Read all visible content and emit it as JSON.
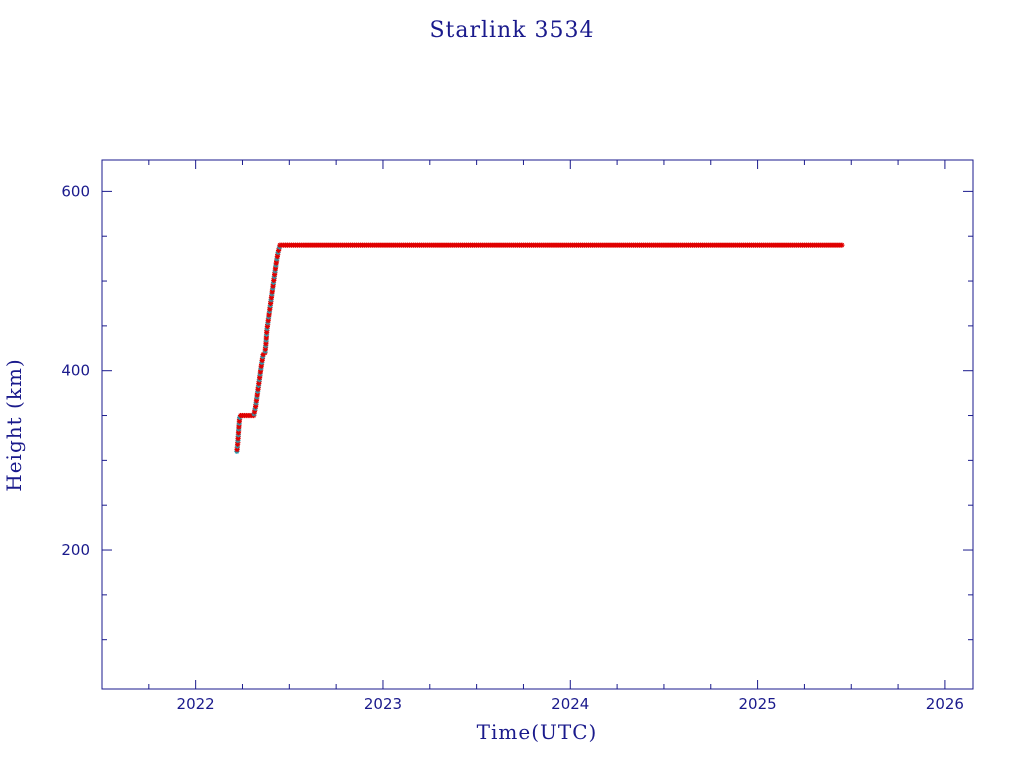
{
  "chart_data": {
    "type": "scatter",
    "title": "Starlink 3534",
    "xlabel": "Time(UTC)",
    "ylabel": "Height (km)",
    "xlim": [
      2021.5,
      2026.15
    ],
    "ylim": [
      45,
      635
    ],
    "x_ticks": [
      2022,
      2023,
      2024,
      2025,
      2026
    ],
    "x_minor_ticks": [
      2021.75,
      2022.25,
      2022.5,
      2022.75,
      2023.25,
      2023.5,
      2023.75,
      2024.25,
      2024.5,
      2024.75,
      2025.25,
      2025.5,
      2025.75
    ],
    "y_ticks": [
      200,
      400,
      600
    ],
    "y_minor_ticks": [
      100,
      150,
      250,
      300,
      350,
      450,
      500,
      550
    ],
    "grid": false,
    "colors": {
      "axis": "#1a1a8c",
      "series": "#e00000",
      "secondary_marker": "#2a9db0"
    },
    "series": [
      {
        "marker": "asterisk",
        "points": [
          [
            2022.22,
            310
          ],
          [
            2022.225,
            320
          ],
          [
            2022.23,
            335
          ],
          [
            2022.235,
            348
          ],
          [
            2022.24,
            350
          ],
          [
            2022.26,
            350
          ],
          [
            2022.28,
            350
          ],
          [
            2022.3,
            350
          ],
          [
            2022.31,
            350
          ],
          [
            2022.32,
            360
          ],
          [
            2022.33,
            375
          ],
          [
            2022.34,
            390
          ],
          [
            2022.35,
            405
          ],
          [
            2022.36,
            418
          ],
          [
            2022.37,
            420
          ],
          [
            2022.375,
            430
          ],
          [
            2022.38,
            445
          ],
          [
            2022.39,
            460
          ],
          [
            2022.4,
            475
          ],
          [
            2022.41,
            490
          ],
          [
            2022.42,
            505
          ],
          [
            2022.43,
            520
          ],
          [
            2022.44,
            532
          ],
          [
            2022.45,
            540
          ],
          [
            2022.5,
            540
          ],
          [
            2022.6,
            540
          ],
          [
            2022.75,
            540
          ],
          [
            2023.0,
            540
          ],
          [
            2023.25,
            540
          ],
          [
            2023.5,
            540
          ],
          [
            2023.75,
            540
          ],
          [
            2024.0,
            540
          ],
          [
            2024.25,
            540
          ],
          [
            2024.5,
            540
          ],
          [
            2024.75,
            540
          ],
          [
            2025.0,
            540
          ],
          [
            2025.25,
            540
          ],
          [
            2025.45,
            540
          ]
        ]
      }
    ]
  }
}
